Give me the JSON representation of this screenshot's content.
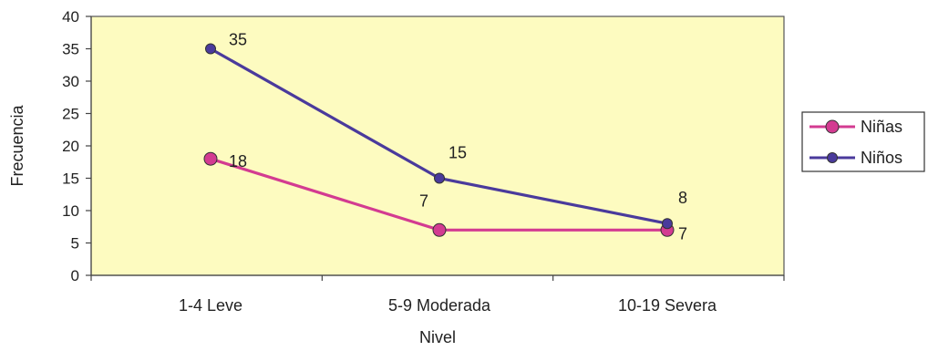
{
  "chart_data": {
    "type": "line",
    "categories": [
      "1-4 Leve",
      "5-9 Moderada",
      "10-19 Severa"
    ],
    "series": [
      {
        "name": "Niñas",
        "values": [
          18,
          7,
          7
        ],
        "color": "#d33b91",
        "labels": [
          "18",
          "7",
          "7"
        ]
      },
      {
        "name": "Niños",
        "values": [
          35,
          15,
          8
        ],
        "color": "#4a3a9c",
        "labels": [
          "35",
          "15",
          "8"
        ]
      }
    ],
    "xlabel": "Nivel",
    "ylabel": "Frecuencia",
    "ylim": [
      0,
      40
    ],
    "yticks": [
      0,
      5,
      10,
      15,
      20,
      25,
      30,
      35,
      40
    ],
    "plot_background": "#fdfbc0",
    "legend_position": "right",
    "grid": false
  }
}
